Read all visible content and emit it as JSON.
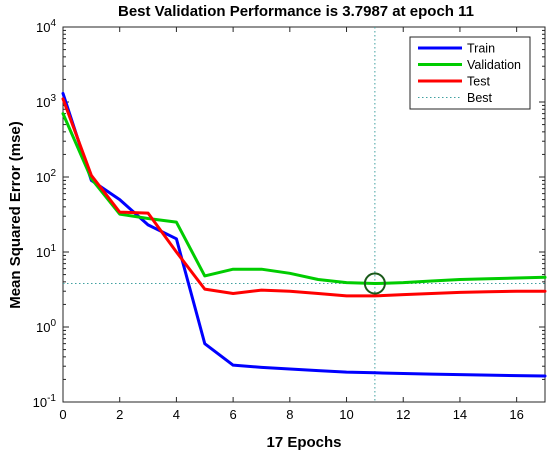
{
  "chart_data": {
    "type": "line",
    "title": "Best Validation Performance is 3.7987 at epoch 11",
    "xlabel": "17 Epochs",
    "ylabel": "Mean Squared Error  (mse)",
    "x_scale": "linear",
    "y_scale": "log",
    "xlim": [
      0,
      17
    ],
    "ylim": [
      0.1,
      10000
    ],
    "x_ticks": [
      0,
      2,
      4,
      6,
      8,
      10,
      12,
      14,
      16
    ],
    "y_ticks": [
      {
        "value": 0.1,
        "base": "10",
        "exp": "-1"
      },
      {
        "value": 1,
        "base": "10",
        "exp": "0"
      },
      {
        "value": 10,
        "base": "10",
        "exp": "1"
      },
      {
        "value": 100,
        "base": "10",
        "exp": "2"
      },
      {
        "value": 1000,
        "base": "10",
        "exp": "3"
      },
      {
        "value": 10000,
        "base": "10",
        "exp": "4"
      }
    ],
    "grid": false,
    "legend_position": "top-right",
    "x": [
      0,
      1,
      2,
      3,
      4,
      5,
      6,
      7,
      8,
      9,
      10,
      11,
      12,
      13,
      14,
      15,
      16,
      17
    ],
    "series": [
      {
        "name": "Train",
        "color": "#0000ff",
        "values": [
          1300,
          90,
          50,
          23,
          15,
          0.6,
          0.31,
          0.29,
          0.275,
          0.262,
          0.25,
          0.245,
          0.24,
          0.235,
          0.232,
          0.228,
          0.225,
          0.222
        ]
      },
      {
        "name": "Validation",
        "color": "#00cc00",
        "values": [
          700,
          95,
          32,
          28,
          25,
          4.8,
          5.9,
          5.9,
          5.2,
          4.3,
          3.9,
          3.7987,
          3.9,
          4.1,
          4.3,
          4.4,
          4.5,
          4.6
        ]
      },
      {
        "name": "Test",
        "color": "#ff0000",
        "values": [
          1100,
          105,
          34,
          33,
          10,
          3.2,
          2.8,
          3.1,
          3.0,
          2.8,
          2.6,
          2.6,
          2.7,
          2.8,
          2.9,
          2.95,
          3.0,
          3.0
        ]
      }
    ],
    "best": {
      "name": "Best",
      "color": "#40a0a0",
      "epoch": 11,
      "value": 3.7987
    }
  }
}
